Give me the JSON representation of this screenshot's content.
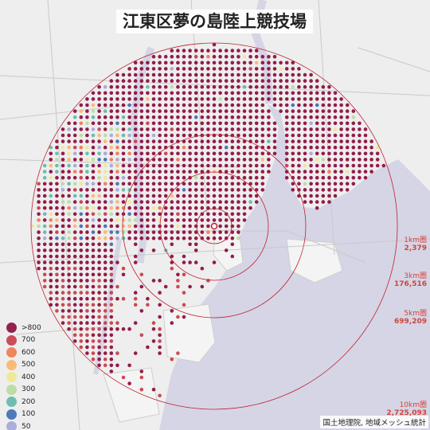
{
  "title": "江東区夢の島陸上競技場",
  "credit": "国土地理院, 地域メッシュ統計",
  "rings": [
    {
      "name": "1km圏",
      "population": "2,379"
    },
    {
      "name": "3km圏",
      "population": "176,516"
    },
    {
      "name": "5km圏",
      "population": "699,209"
    },
    {
      "name": "10km圏",
      "population": "2,725,093"
    }
  ],
  "legend": [
    {
      "label": ">800",
      "color": "#8b0a3b"
    },
    {
      "label": "700",
      "color": "#c73b48"
    },
    {
      "label": "600",
      "color": "#ee7a4d"
    },
    {
      "label": "500",
      "color": "#f7b66a"
    },
    {
      "label": "400",
      "color": "#ece88f"
    },
    {
      "label": "300",
      "color": "#b5dc9e"
    },
    {
      "label": "200",
      "color": "#5eb8a9"
    },
    {
      "label": "100",
      "color": "#3e6cb4"
    },
    {
      "label": "50",
      "color": "#a3a6d6"
    }
  ],
  "colors": {
    "land": "#eeeeee",
    "water": "#d5d5e6",
    "ring": "#c0202e",
    "dot_dominant": "#8b0a3b"
  },
  "marker": "venue-marker"
}
